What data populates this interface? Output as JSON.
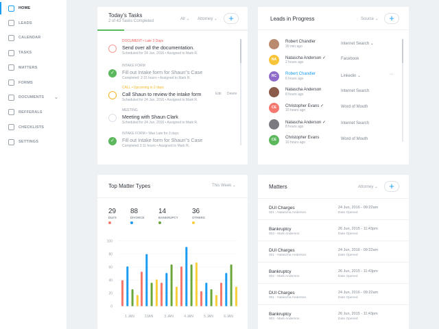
{
  "sidebar": {
    "items": [
      {
        "label": "HOME",
        "icon": "home-icon"
      },
      {
        "label": "LEADS",
        "icon": "user-circle-icon"
      },
      {
        "label": "CALENDAR",
        "icon": "calendar-icon"
      },
      {
        "label": "TASKS",
        "icon": "task-icon"
      },
      {
        "label": "MATTERS",
        "icon": "matters-icon"
      },
      {
        "label": "FORMS",
        "icon": "form-icon"
      },
      {
        "label": "DOCUMENTS",
        "icon": "document-icon"
      },
      {
        "label": "REFFERALS",
        "icon": "referral-icon"
      },
      {
        "label": "CHECKLISTS",
        "icon": "checklist-icon"
      },
      {
        "label": "SETTINGS",
        "icon": "gear-icon"
      }
    ]
  },
  "tasks": {
    "title": "Today's Tasks",
    "subtitle": "2 of 43 Tasks Completed",
    "progress": 0.18,
    "filter1": "All ⌄",
    "filter2": "Attorney ⌄",
    "add": "+",
    "edit": "Edit",
    "delete": "Delete",
    "items": [
      {
        "tag": "DOCUMENT • Late 3 Days",
        "tag_color": "#f0605a",
        "title": "Send over all the documentation.",
        "meta": "Scheduled for 24 Jun, 2016   •   Assigned to Mark R.",
        "state": "late",
        "ring": "#f59a95"
      },
      {
        "tag": "INTAKE FORM",
        "tag_color": "#9aa2ab",
        "title": "Fill out Intake form for Shaun\"s Case",
        "meta": "Completed: 2:15 hours   •   Assigned to Mark R.",
        "state": "done"
      },
      {
        "tag": "CALL • Upcoming in 2 days",
        "tag_color": "#f5b623",
        "title": "Call Shaun to review the intake form",
        "meta": "Scheduled for 24 Jun, 2016   •   Assigned to Mark R.",
        "state": "upcoming",
        "ring": "#f5b623"
      },
      {
        "tag": "MEETING",
        "tag_color": "#9aa2ab",
        "title": "Meeting with Shaun Clark",
        "meta": "Scheduled for 24 Jun, 2016   •   Assigned to Mark R.",
        "state": "open",
        "ring": "#dde2e7"
      },
      {
        "tag": "INTAKE FORM • Was Late for 3 days",
        "tag_color": "#9aa2ab",
        "title": "Fill out Intake form for Shaun\"s Case",
        "meta": "Completed 3:11 hours   •   Assigned to Mark R.",
        "state": "done"
      }
    ]
  },
  "leads": {
    "title": "Leads in Progress",
    "filter": "Source ⌄",
    "add": "+",
    "more": "···",
    "items": [
      {
        "name": "Robert Chandler",
        "ago": "30 min ago",
        "source": "Internet Search ⌄",
        "initials": "",
        "color": "#b98a6e"
      },
      {
        "name": "Natascha Anderson ✓",
        "ago": "2 hours ago",
        "source": "Facebook",
        "initials": "NA",
        "color": "#f8c43a"
      },
      {
        "name": "Robert Chandler",
        "ago": "6 hours ago",
        "source": "Linkedin ⌄",
        "initials": "RC",
        "color": "#8e6bc9",
        "highlight": "#1a9cf2"
      },
      {
        "name": "Natascha Anderson",
        "ago": "8 hours ago",
        "source": "Internet Search",
        "initials": "",
        "color": "#8a5a4a"
      },
      {
        "name": "Christopher Evans ✓",
        "ago": "10 hours ago",
        "source": "Word of Mouth",
        "initials": "CE",
        "color": "#f5786e"
      },
      {
        "name": "Natascha Anderson ✓",
        "ago": "8 hours ago",
        "source": "Internet Search",
        "initials": "",
        "color": "#7a7a80"
      },
      {
        "name": "Christopher Evans",
        "ago": "10 hours ago",
        "source": "Word of Mouth",
        "initials": "CE",
        "color": "#5cb85c"
      }
    ]
  },
  "top_matter": {
    "title": "Top Matter Types",
    "filter": "This Week ⌄",
    "stats": [
      {
        "value": "29",
        "label": "DUI'S",
        "color": "#f5786e"
      },
      {
        "value": "88",
        "label": "DIVORCE",
        "color": "#1a9cf2"
      },
      {
        "value": "14",
        "label": "BANKRUPCY",
        "color": "#6aa63a"
      },
      {
        "value": "36",
        "label": "OTHERS",
        "color": "#f8cf3a"
      }
    ]
  },
  "chart_data": {
    "type": "bar",
    "categories": [
      "1 JAN",
      "2JAN",
      "3 JAN",
      "4 JAN",
      "5 JAN",
      "6 JAN"
    ],
    "ylim": [
      0,
      100
    ],
    "yticks": [
      "0",
      "20",
      "40",
      "60",
      "80",
      "100"
    ],
    "grid": true,
    "series": [
      {
        "values": [
          40,
          53,
          36,
          61,
          23,
          36
        ],
        "color": "#f5786e"
      },
      {
        "values": [
          61,
          80,
          51,
          91,
          36,
          51
        ],
        "color": "#1a9cf2"
      },
      {
        "values": [
          26,
          36,
          64,
          64,
          26,
          64
        ],
        "color": "#6aa63a"
      },
      {
        "values": [
          17,
          41,
          30,
          67,
          17,
          30
        ],
        "color": "#f8cf3a"
      }
    ]
  },
  "matters": {
    "title": "Matters",
    "filter": "Attorney ⌄",
    "add": "+",
    "items": [
      {
        "title": "DUI Charges",
        "sub": "001 - Natascha Anderson",
        "date": "24 Jun, 2016 - 09:22am",
        "date_label": "Date Opened"
      },
      {
        "title": "Bankruptcy",
        "sub": "002 - Mark Anderson",
        "date": "26 Jun, 2015 - 11:43pm",
        "date_label": "Date Opened"
      },
      {
        "title": "DUI Charges",
        "sub": "001 - Natascha Anderson",
        "date": "24 Jun, 2016 - 09:22am",
        "date_label": "Date Opened"
      },
      {
        "title": "Bankruptcy",
        "sub": "002 - Mark Anderson",
        "date": "26 Jun, 2015 - 11:43pm",
        "date_label": "Date Opened"
      },
      {
        "title": "DUI Charges",
        "sub": "001 - Natascha Anderson",
        "date": "24 Jun, 2016 - 09:22am",
        "date_label": "Date Opened"
      },
      {
        "title": "Bankruptcy",
        "sub": "002 - Mark Anderson",
        "date": "26 Jun, 2015 - 11:43pm",
        "date_label": "Date Opened"
      }
    ]
  }
}
